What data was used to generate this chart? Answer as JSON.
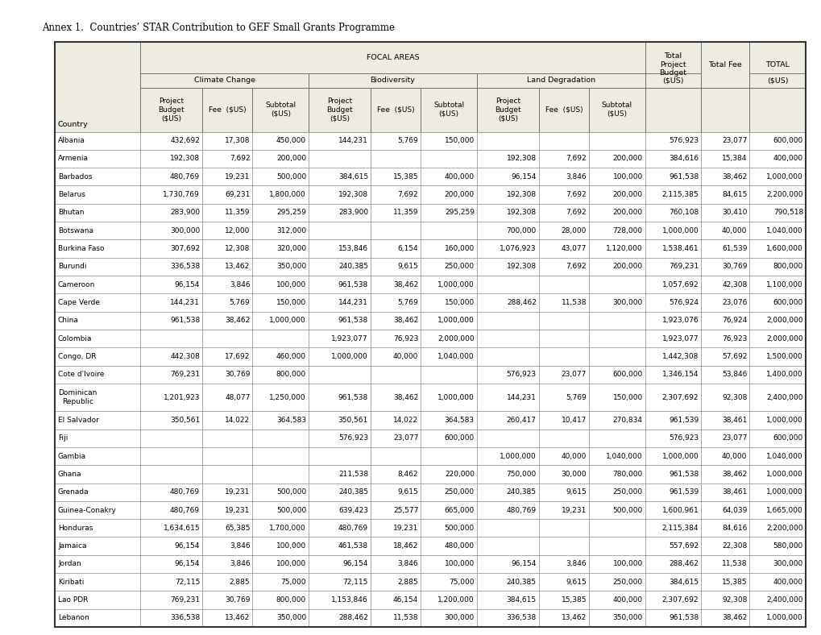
{
  "title": "Annex 1.  Countries’ STAR Contribution to GEF Small Grants Programme",
  "header_bg": "#eeebe0",
  "white": "#ffffff",
  "border_color": "#000000",
  "header_font_size": 6.8,
  "data_font_size": 6.5,
  "title_font_size": 8.5,
  "col_widths_raw": [
    1.45,
    1.05,
    0.85,
    0.95,
    1.05,
    0.85,
    0.95,
    1.05,
    0.85,
    0.95,
    0.95,
    0.82,
    0.95
  ],
  "rows": [
    [
      "Albania",
      "432,692",
      "17,308",
      "450,000",
      "144,231",
      "5,769",
      "150,000",
      "",
      "",
      "",
      "576,923",
      "23,077",
      "600,000"
    ],
    [
      "Armenia",
      "192,308",
      "7,692",
      "200,000",
      "",
      "",
      "",
      "192,308",
      "7,692",
      "200,000",
      "384,616",
      "15,384",
      "400,000"
    ],
    [
      "Barbados",
      "480,769",
      "19,231",
      "500,000",
      "384,615",
      "15,385",
      "400,000",
      "96,154",
      "3,846",
      "100,000",
      "961,538",
      "38,462",
      "1,000,000"
    ],
    [
      "Belarus",
      "1,730,769",
      "69,231",
      "1,800,000",
      "192,308",
      "7,692",
      "200,000",
      "192,308",
      "7,692",
      "200,000",
      "2,115,385",
      "84,615",
      "2,200,000"
    ],
    [
      "Bhutan",
      "283,900",
      "11,359",
      "295,259",
      "283,900",
      "11,359",
      "295,259",
      "192,308",
      "7,692",
      "200,000",
      "760,108",
      "30,410",
      "790,518"
    ],
    [
      "Botswana",
      "300,000",
      "12,000",
      "312,000",
      "",
      "",
      "",
      "700,000",
      "28,000",
      "728,000",
      "1,000,000",
      "40,000",
      "1,040,000"
    ],
    [
      "Burkina Faso",
      "307,692",
      "12,308",
      "320,000",
      "153,846",
      "6,154",
      "160,000",
      "1,076,923",
      "43,077",
      "1,120,000",
      "1,538,461",
      "61,539",
      "1,600,000"
    ],
    [
      "Burundi",
      "336,538",
      "13,462",
      "350,000",
      "240,385",
      "9,615",
      "250,000",
      "192,308",
      "7,692",
      "200,000",
      "769,231",
      "30,769",
      "800,000"
    ],
    [
      "Cameroon",
      "96,154",
      "3,846",
      "100,000",
      "961,538",
      "38,462",
      "1,000,000",
      "",
      "",
      "",
      "1,057,692",
      "42,308",
      "1,100,000"
    ],
    [
      "Cape Verde",
      "144,231",
      "5,769",
      "150,000",
      "144,231",
      "5,769",
      "150,000",
      "288,462",
      "11,538",
      "300,000",
      "576,924",
      "23,076",
      "600,000"
    ],
    [
      "China",
      "961,538",
      "38,462",
      "1,000,000",
      "961,538",
      "38,462",
      "1,000,000",
      "",
      "",
      "",
      "1,923,076",
      "76,924",
      "2,000,000"
    ],
    [
      "Colombia",
      "",
      "",
      "",
      "1,923,077",
      "76,923",
      "2,000,000",
      "",
      "",
      "",
      "1,923,077",
      "76,923",
      "2,000,000"
    ],
    [
      "Congo, DR",
      "442,308",
      "17,692",
      "460,000",
      "1,000,000",
      "40,000",
      "1,040,000",
      "",
      "",
      "",
      "1,442,308",
      "57,692",
      "1,500,000"
    ],
    [
      "Cote d'Ivoire",
      "769,231",
      "30,769",
      "800,000",
      "",
      "",
      "",
      "576,923",
      "23,077",
      "600,000",
      "1,346,154",
      "53,846",
      "1,400,000"
    ],
    [
      "Dominican\nRepublic",
      "1,201,923",
      "48,077",
      "1,250,000",
      "961,538",
      "38,462",
      "1,000,000",
      "144,231",
      "5,769",
      "150,000",
      "2,307,692",
      "92,308",
      "2,400,000"
    ],
    [
      "El Salvador",
      "350,561",
      "14,022",
      "364,583",
      "350,561",
      "14,022",
      "364,583",
      "260,417",
      "10,417",
      "270,834",
      "961,539",
      "38,461",
      "1,000,000"
    ],
    [
      "Fiji",
      "",
      "",
      "",
      "576,923",
      "23,077",
      "600,000",
      "",
      "",
      "",
      "576,923",
      "23,077",
      "600,000"
    ],
    [
      "Gambia",
      "",
      "",
      "",
      "",
      "",
      "",
      "1,000,000",
      "40,000",
      "1,040,000",
      "1,000,000",
      "40,000",
      "1,040,000"
    ],
    [
      "Ghana",
      "",
      "",
      "",
      "211,538",
      "8,462",
      "220,000",
      "750,000",
      "30,000",
      "780,000",
      "961,538",
      "38,462",
      "1,000,000"
    ],
    [
      "Grenada",
      "480,769",
      "19,231",
      "500,000",
      "240,385",
      "9,615",
      "250,000",
      "240,385",
      "9,615",
      "250,000",
      "961,539",
      "38,461",
      "1,000,000"
    ],
    [
      "Guinea-Conakry",
      "480,769",
      "19,231",
      "500,000",
      "639,423",
      "25,577",
      "665,000",
      "480,769",
      "19,231",
      "500,000",
      "1,600,961",
      "64,039",
      "1,665,000"
    ],
    [
      "Honduras",
      "1,634,615",
      "65,385",
      "1,700,000",
      "480,769",
      "19,231",
      "500,000",
      "",
      "",
      "",
      "2,115,384",
      "84,616",
      "2,200,000"
    ],
    [
      "Jamaica",
      "96,154",
      "3,846",
      "100,000",
      "461,538",
      "18,462",
      "480,000",
      "",
      "",
      "",
      "557,692",
      "22,308",
      "580,000"
    ],
    [
      "Jordan",
      "96,154",
      "3,846",
      "100,000",
      "96,154",
      "3,846",
      "100,000",
      "96,154",
      "3,846",
      "100,000",
      "288,462",
      "11,538",
      "300,000"
    ],
    [
      "Kiribati",
      "72,115",
      "2,885",
      "75,000",
      "72,115",
      "2,885",
      "75,000",
      "240,385",
      "9,615",
      "250,000",
      "384,615",
      "15,385",
      "400,000"
    ],
    [
      "Lao PDR",
      "769,231",
      "30,769",
      "800,000",
      "1,153,846",
      "46,154",
      "1,200,000",
      "384,615",
      "15,385",
      "400,000",
      "2,307,692",
      "92,308",
      "2,400,000"
    ],
    [
      "Lebanon",
      "336,538",
      "13,462",
      "350,000",
      "288,462",
      "11,538",
      "300,000",
      "336,538",
      "13,462",
      "350,000",
      "961,538",
      "38,462",
      "1,000,000"
    ]
  ]
}
